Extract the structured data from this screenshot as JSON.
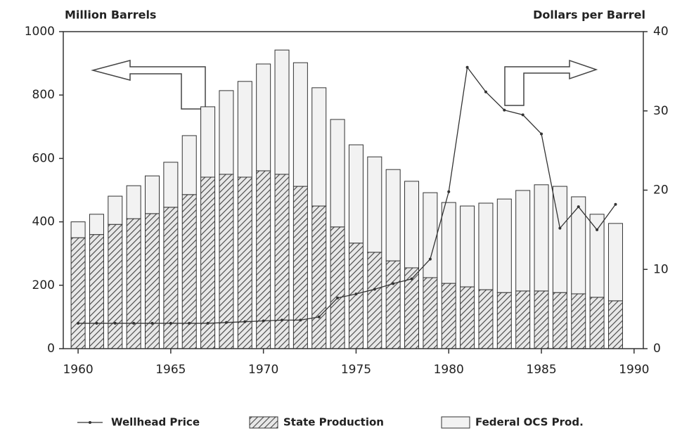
{
  "chart_data": {
    "type": "bar",
    "ylabel": "Million Barrels",
    "y2label": "Dollars per Barrel",
    "x": [
      1960,
      1961,
      1962,
      1963,
      1964,
      1965,
      1966,
      1967,
      1968,
      1969,
      1970,
      1971,
      1972,
      1973,
      1974,
      1975,
      1976,
      1977,
      1978,
      1979,
      1980,
      1981,
      1982,
      1983,
      1984,
      1985,
      1986,
      1987,
      1988,
      1989
    ],
    "series": [
      {
        "name": "Wellhead Price",
        "type": "line",
        "axis": "y2",
        "color": "#333",
        "values": [
          3.2,
          3.2,
          3.2,
          3.2,
          3.2,
          3.2,
          3.2,
          3.2,
          3.3,
          3.4,
          3.5,
          3.6,
          3.6,
          4.0,
          6.4,
          6.9,
          7.5,
          8.2,
          8.8,
          11.3,
          19.8,
          35.5,
          32.4,
          30.1,
          29.5,
          27.1,
          15.2,
          17.9,
          15.0,
          18.2
        ]
      },
      {
        "name": "State Production",
        "color": "#444",
        "values": [
          350,
          360,
          392,
          410,
          426,
          446,
          486,
          541,
          550,
          541,
          561,
          550,
          512,
          450,
          384,
          333,
          304,
          277,
          255,
          224,
          206,
          195,
          186,
          177,
          182,
          182,
          177,
          173,
          162,
          151
        ]
      },
      {
        "name": "Federal OCS Prod.",
        "color": "#f2f2f2",
        "values": [
          50,
          64,
          89,
          104,
          119,
          142,
          186,
          222,
          264,
          302,
          337,
          392,
          390,
          373,
          339,
          310,
          301,
          288,
          273,
          268,
          255,
          255,
          273,
          295,
          317,
          335,
          335,
          306,
          262,
          244
        ]
      }
    ],
    "xlim": [
      1959.2,
      1990.5
    ],
    "xticks": [
      1960,
      1965,
      1970,
      1975,
      1980,
      1985,
      1990
    ],
    "ylim": [
      0,
      1000
    ],
    "yticks": [
      0,
      200,
      400,
      600,
      800,
      1000
    ],
    "y2lim": [
      0,
      40
    ],
    "y2ticks": [
      0,
      10,
      20,
      30,
      40
    ]
  }
}
